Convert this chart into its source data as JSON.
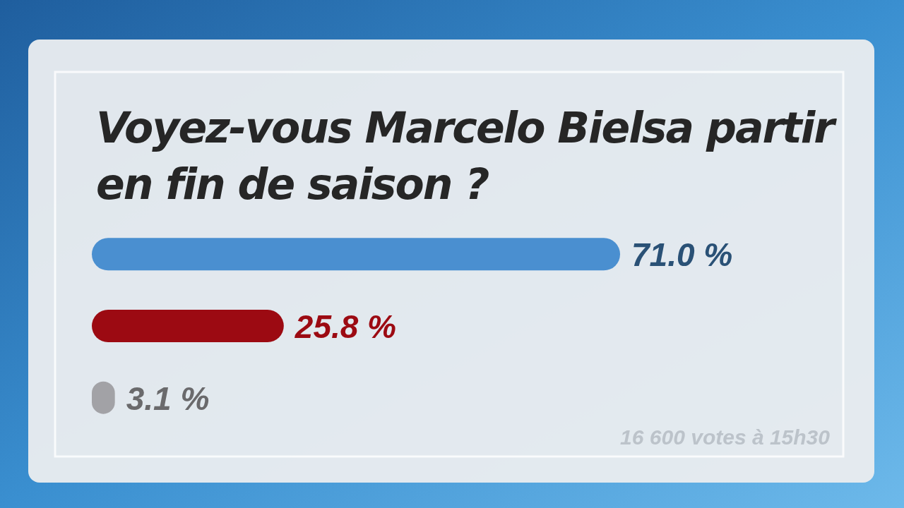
{
  "chart_data": {
    "type": "bar",
    "orientation": "horizontal",
    "title": "Voyez-vous Marcelo Bielsa partir en fin de saison ?",
    "categories": [
      null,
      null,
      null
    ],
    "values": [
      71.0,
      25.8,
      3.1
    ],
    "colors": [
      "#4a8fd0",
      "#9c0a12",
      "#a2a2a6"
    ],
    "value_labels": [
      "71.0 %",
      "25.8 %",
      "3.1 %"
    ],
    "annotations": [
      "16 600 votes à 15h30"
    ]
  }
}
